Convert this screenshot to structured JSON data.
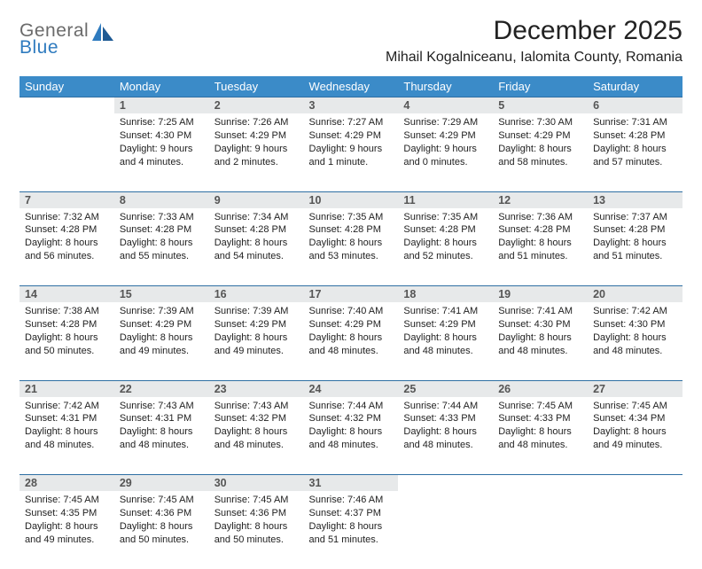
{
  "logo": {
    "line1": "General",
    "line2": "Blue"
  },
  "title": "December 2025",
  "location": "Mihail Kogalniceanu, Ialomita County, Romania",
  "headers": [
    "Sunday",
    "Monday",
    "Tuesday",
    "Wednesday",
    "Thursday",
    "Friday",
    "Saturday"
  ],
  "colors": {
    "header_bg": "#3b8bc8",
    "header_text": "#ffffff",
    "daynum_bg": "#e7e9ea",
    "daynum_border": "#2f6fa3",
    "logo_gray": "#6b6b6b",
    "logo_blue": "#2f7bbf"
  },
  "weeks": [
    {
      "nums": [
        "",
        "1",
        "2",
        "3",
        "4",
        "5",
        "6"
      ],
      "cells": [
        {
          "sunrise": "",
          "sunset": "",
          "daylight": ""
        },
        {
          "sunrise": "7:25 AM",
          "sunset": "4:30 PM",
          "daylight": "9 hours and 4 minutes."
        },
        {
          "sunrise": "7:26 AM",
          "sunset": "4:29 PM",
          "daylight": "9 hours and 2 minutes."
        },
        {
          "sunrise": "7:27 AM",
          "sunset": "4:29 PM",
          "daylight": "9 hours and 1 minute."
        },
        {
          "sunrise": "7:29 AM",
          "sunset": "4:29 PM",
          "daylight": "9 hours and 0 minutes."
        },
        {
          "sunrise": "7:30 AM",
          "sunset": "4:29 PM",
          "daylight": "8 hours and 58 minutes."
        },
        {
          "sunrise": "7:31 AM",
          "sunset": "4:28 PM",
          "daylight": "8 hours and 57 minutes."
        }
      ]
    },
    {
      "nums": [
        "7",
        "8",
        "9",
        "10",
        "11",
        "12",
        "13"
      ],
      "cells": [
        {
          "sunrise": "7:32 AM",
          "sunset": "4:28 PM",
          "daylight": "8 hours and 56 minutes."
        },
        {
          "sunrise": "7:33 AM",
          "sunset": "4:28 PM",
          "daylight": "8 hours and 55 minutes."
        },
        {
          "sunrise": "7:34 AM",
          "sunset": "4:28 PM",
          "daylight": "8 hours and 54 minutes."
        },
        {
          "sunrise": "7:35 AM",
          "sunset": "4:28 PM",
          "daylight": "8 hours and 53 minutes."
        },
        {
          "sunrise": "7:35 AM",
          "sunset": "4:28 PM",
          "daylight": "8 hours and 52 minutes."
        },
        {
          "sunrise": "7:36 AM",
          "sunset": "4:28 PM",
          "daylight": "8 hours and 51 minutes."
        },
        {
          "sunrise": "7:37 AM",
          "sunset": "4:28 PM",
          "daylight": "8 hours and 51 minutes."
        }
      ]
    },
    {
      "nums": [
        "14",
        "15",
        "16",
        "17",
        "18",
        "19",
        "20"
      ],
      "cells": [
        {
          "sunrise": "7:38 AM",
          "sunset": "4:28 PM",
          "daylight": "8 hours and 50 minutes."
        },
        {
          "sunrise": "7:39 AM",
          "sunset": "4:29 PM",
          "daylight": "8 hours and 49 minutes."
        },
        {
          "sunrise": "7:39 AM",
          "sunset": "4:29 PM",
          "daylight": "8 hours and 49 minutes."
        },
        {
          "sunrise": "7:40 AM",
          "sunset": "4:29 PM",
          "daylight": "8 hours and 48 minutes."
        },
        {
          "sunrise": "7:41 AM",
          "sunset": "4:29 PM",
          "daylight": "8 hours and 48 minutes."
        },
        {
          "sunrise": "7:41 AM",
          "sunset": "4:30 PM",
          "daylight": "8 hours and 48 minutes."
        },
        {
          "sunrise": "7:42 AM",
          "sunset": "4:30 PM",
          "daylight": "8 hours and 48 minutes."
        }
      ]
    },
    {
      "nums": [
        "21",
        "22",
        "23",
        "24",
        "25",
        "26",
        "27"
      ],
      "cells": [
        {
          "sunrise": "7:42 AM",
          "sunset": "4:31 PM",
          "daylight": "8 hours and 48 minutes."
        },
        {
          "sunrise": "7:43 AM",
          "sunset": "4:31 PM",
          "daylight": "8 hours and 48 minutes."
        },
        {
          "sunrise": "7:43 AM",
          "sunset": "4:32 PM",
          "daylight": "8 hours and 48 minutes."
        },
        {
          "sunrise": "7:44 AM",
          "sunset": "4:32 PM",
          "daylight": "8 hours and 48 minutes."
        },
        {
          "sunrise": "7:44 AM",
          "sunset": "4:33 PM",
          "daylight": "8 hours and 48 minutes."
        },
        {
          "sunrise": "7:45 AM",
          "sunset": "4:33 PM",
          "daylight": "8 hours and 48 minutes."
        },
        {
          "sunrise": "7:45 AM",
          "sunset": "4:34 PM",
          "daylight": "8 hours and 49 minutes."
        }
      ]
    },
    {
      "nums": [
        "28",
        "29",
        "30",
        "31",
        "",
        "",
        ""
      ],
      "cells": [
        {
          "sunrise": "7:45 AM",
          "sunset": "4:35 PM",
          "daylight": "8 hours and 49 minutes."
        },
        {
          "sunrise": "7:45 AM",
          "sunset": "4:36 PM",
          "daylight": "8 hours and 50 minutes."
        },
        {
          "sunrise": "7:45 AM",
          "sunset": "4:36 PM",
          "daylight": "8 hours and 50 minutes."
        },
        {
          "sunrise": "7:46 AM",
          "sunset": "4:37 PM",
          "daylight": "8 hours and 51 minutes."
        },
        {
          "sunrise": "",
          "sunset": "",
          "daylight": ""
        },
        {
          "sunrise": "",
          "sunset": "",
          "daylight": ""
        },
        {
          "sunrise": "",
          "sunset": "",
          "daylight": ""
        }
      ]
    }
  ],
  "labels": {
    "sunrise": "Sunrise: ",
    "sunset": "Sunset: ",
    "daylight": "Daylight: "
  }
}
